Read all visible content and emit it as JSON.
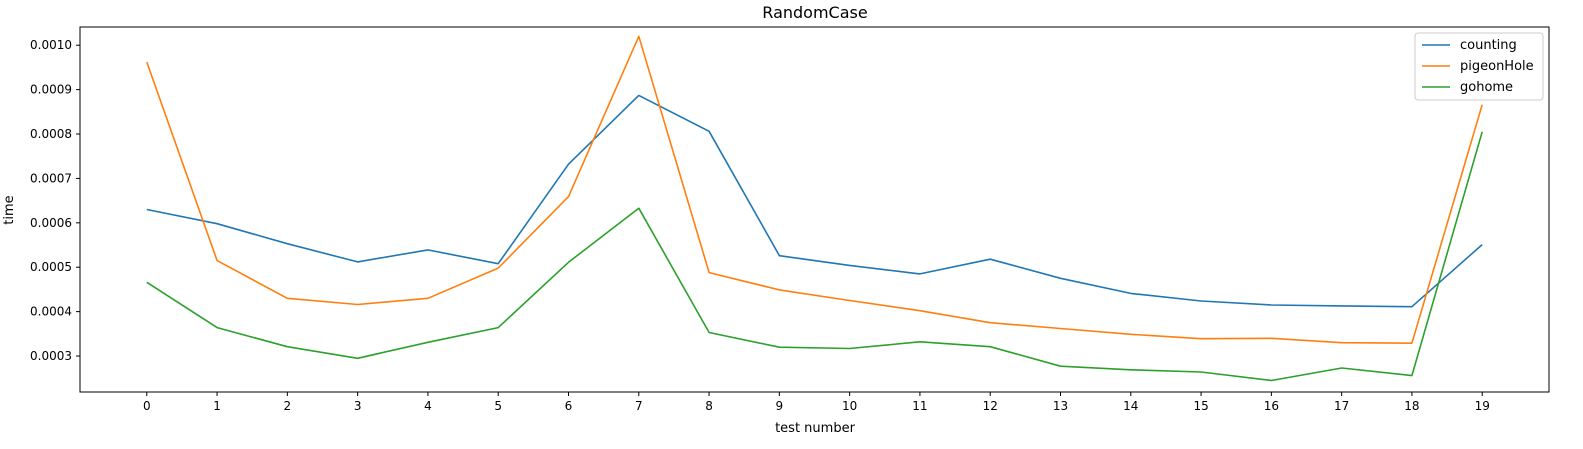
{
  "chart_data": {
    "type": "line",
    "title": "RandomCase",
    "xlabel": "test number",
    "ylabel": "time",
    "x": [
      0,
      1,
      2,
      3,
      4,
      5,
      6,
      7,
      8,
      9,
      10,
      11,
      12,
      13,
      14,
      15,
      16,
      17,
      18,
      19
    ],
    "x_ticks": [
      "0",
      "1",
      "2",
      "3",
      "4",
      "5",
      "6",
      "7",
      "8",
      "9",
      "10",
      "11",
      "12",
      "13",
      "14",
      "15",
      "16",
      "17",
      "18",
      "19"
    ],
    "y_ticks": [
      "0.0003",
      "0.0004",
      "0.0005",
      "0.0006",
      "0.0007",
      "0.0008",
      "0.0009",
      "0.0010"
    ],
    "xlim": [
      -0.95,
      19.95
    ],
    "ylim": [
      0.000219,
      0.001041
    ],
    "grid": false,
    "legend_position": "top-right",
    "series": [
      {
        "name": "counting",
        "color": "#1f77b4",
        "values": [
          0.00063,
          0.000598,
          0.000553,
          0.000512,
          0.000539,
          0.000508,
          0.000732,
          0.000887,
          0.000806,
          0.000526,
          0.000504,
          0.000485,
          0.000518,
          0.000475,
          0.000441,
          0.000424,
          0.000415,
          0.000413,
          0.000411,
          0.000551
        ]
      },
      {
        "name": "pigeonHole",
        "color": "#ff7f0e",
        "values": [
          0.000962,
          0.000515,
          0.00043,
          0.000416,
          0.00043,
          0.000498,
          0.000659,
          0.00102,
          0.000488,
          0.000449,
          0.000425,
          0.000402,
          0.000375,
          0.000362,
          0.000349,
          0.000339,
          0.00034,
          0.00033,
          0.000329,
          0.000866
        ]
      },
      {
        "name": "gohome",
        "color": "#2ca02c",
        "values": [
          0.000466,
          0.000364,
          0.000321,
          0.000295,
          0.000331,
          0.000364,
          0.000511,
          0.000633,
          0.000353,
          0.00032,
          0.000317,
          0.000332,
          0.000321,
          0.000277,
          0.000269,
          0.000264,
          0.000245,
          0.000273,
          0.000256,
          0.000805
        ]
      }
    ]
  }
}
